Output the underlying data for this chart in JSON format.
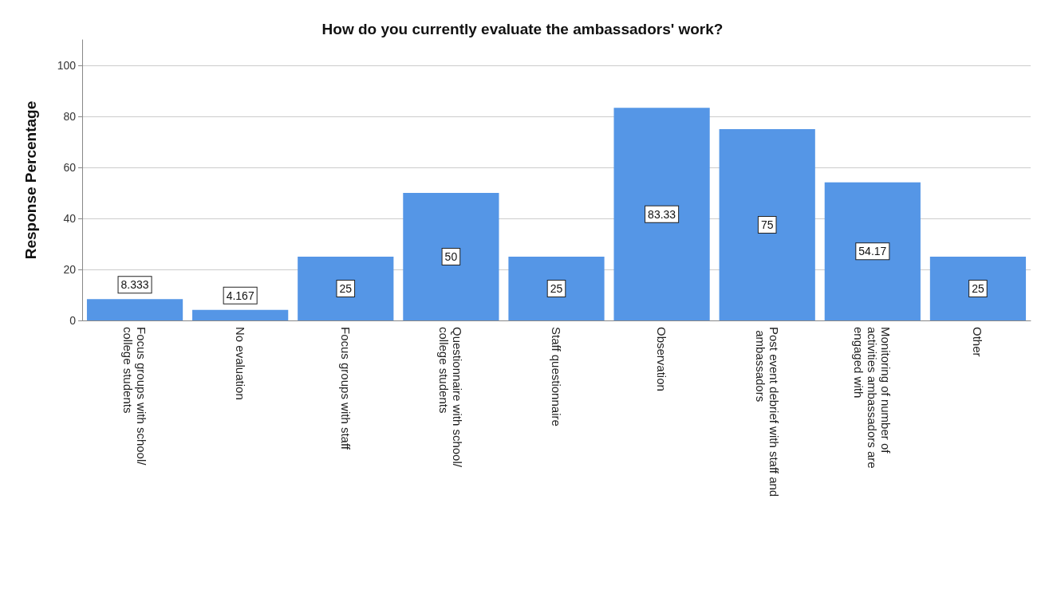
{
  "chart_data": {
    "type": "bar",
    "title": "How do you currently evaluate the ambassadors' work?",
    "ylabel": "Response Percentage",
    "categories": [
      "Focus groups with school/college students",
      "No evaluation",
      "Focus groups with staff",
      "Questionnaire with school/college students",
      "Staff questionnaire",
      "Observation",
      "Post event debrief with staff and ambassadors",
      "Monitoring of number of activities ambassadors are engaged with",
      "Other"
    ],
    "values": [
      8.333,
      4.167,
      25,
      50,
      25,
      83.33,
      75,
      54.17,
      25
    ],
    "color": "#5596e6",
    "ylim": [
      0,
      110
    ],
    "yticks": [
      0,
      20,
      40,
      60,
      80,
      100
    ],
    "grid": "y",
    "data_labels": true
  }
}
